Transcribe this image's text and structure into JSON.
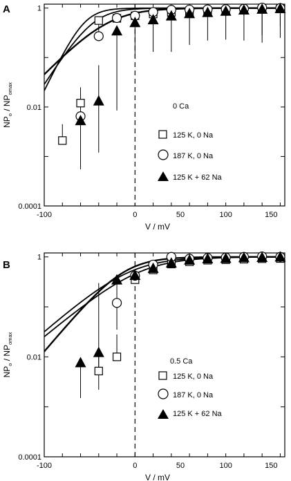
{
  "colors": {
    "ink": "#000000",
    "open_marker": "#ffffff"
  },
  "chart_data": [
    {
      "panel_label": "A",
      "type": "scatter",
      "log_y": true,
      "xlim": [
        -100,
        165
      ],
      "ylim": [
        0.0001,
        1.2
      ],
      "x_ticks": [
        -100,
        -80,
        -60,
        -40,
        -20,
        0,
        20,
        40,
        60,
        80,
        100,
        120,
        140,
        160
      ],
      "x_tick_labels": [
        "-100",
        "0",
        "50",
        "100",
        "150"
      ],
      "x_tick_label_values": [
        -100,
        0,
        50,
        100,
        150
      ],
      "y_ticks": [
        0.0001,
        0.01,
        1
      ],
      "y_tick_labels": [
        "0.0001",
        "0.01",
        "1"
      ],
      "xlabel": "V / mV",
      "ylabel": {
        "main1": "NP",
        "sub1": "o",
        "main2": " / NP",
        "sub2": "omax"
      },
      "legend_title": "0 Ca",
      "vertical_dashed_line_at_x": 0,
      "series": [
        {
          "name": "125 K, 0 Na",
          "marker": "square",
          "points": [
            {
              "x": -80,
              "y": 0.0021,
              "err_up": 0.0045
            },
            {
              "x": -60,
              "y": 0.012,
              "err_up": 0.025
            },
            {
              "x": -40,
              "y": 0.56
            },
            {
              "x": -20,
              "y": 0.62
            },
            {
              "x": 0,
              "y": 0.7
            },
            {
              "x": 20,
              "y": 0.76
            },
            {
              "x": 40,
              "y": 0.82
            },
            {
              "x": 60,
              "y": 0.85
            },
            {
              "x": 80,
              "y": 0.88
            },
            {
              "x": 100,
              "y": 0.9
            },
            {
              "x": 120,
              "y": 0.92
            },
            {
              "x": 140,
              "y": 0.95
            },
            {
              "x": 160,
              "y": 0.96
            }
          ],
          "curve": {
            "vhalf": -56,
            "slope": 2.2
          }
        },
        {
          "name": "187 K, 0 Na",
          "marker": "circle",
          "points": [
            {
              "x": -60,
              "y": 0.0065,
              "err_up": 0.018
            },
            {
              "x": -40,
              "y": 0.27,
              "err_up": 0.62
            },
            {
              "x": -20,
              "y": 0.63
            },
            {
              "x": 0,
              "y": 0.7
            },
            {
              "x": 20,
              "y": 0.83
            },
            {
              "x": 40,
              "y": 0.92,
              "err_down": 0.62
            },
            {
              "x": 60,
              "y": 0.93,
              "err_down": 0.67
            },
            {
              "x": 80,
              "y": 0.94
            },
            {
              "x": 100,
              "y": 0.95,
              "err_down": 0.68
            },
            {
              "x": 120,
              "y": 0.97,
              "err_down": 0.7
            },
            {
              "x": 140,
              "y": 1.02,
              "err_down": 0.28
            },
            {
              "x": 160,
              "y": 1.0,
              "err_down": 0.42
            }
          ],
          "curve": {
            "vhalf": -46,
            "slope": 1.65
          }
        },
        {
          "name": "125 K + 62 Na",
          "marker": "triangle",
          "points": [
            {
              "x": -60,
              "y": 0.0052,
              "err_down": 0.00055
            },
            {
              "x": -40,
              "y": 0.013,
              "err_down": 0.0012,
              "err_up": 0.07
            },
            {
              "x": -20,
              "y": 0.34,
              "err_down": 0.0085
            },
            {
              "x": 0,
              "y": 0.5,
              "err_down": 0.1
            },
            {
              "x": 20,
              "y": 0.57,
              "err_down": 0.13
            },
            {
              "x": 40,
              "y": 0.68,
              "err_down": 0.13
            },
            {
              "x": 60,
              "y": 0.76,
              "err_down": 0.18
            },
            {
              "x": 80,
              "y": 0.8,
              "err_down": 0.22
            },
            {
              "x": 100,
              "y": 0.85,
              "err_down": 0.23
            },
            {
              "x": 120,
              "y": 0.9,
              "err_down": 0.22
            },
            {
              "x": 140,
              "y": 0.93,
              "err_down": 0.2
            },
            {
              "x": 160,
              "y": 0.96,
              "err_down": 0.25
            }
          ],
          "curve": {
            "vhalf": -30,
            "slope": 1.1
          }
        }
      ]
    },
    {
      "panel_label": "B",
      "type": "scatter",
      "log_y": true,
      "xlim": [
        -100,
        165
      ],
      "ylim": [
        0.0001,
        1.2
      ],
      "x_ticks": [
        -100,
        -80,
        -60,
        -40,
        -20,
        0,
        20,
        40,
        60,
        80,
        100,
        120,
        140,
        160
      ],
      "x_tick_labels": [
        "-100",
        "0",
        "50",
        "100",
        "150"
      ],
      "x_tick_label_values": [
        -100,
        0,
        50,
        100,
        150
      ],
      "y_ticks": [
        0.0001,
        0.01,
        1
      ],
      "y_tick_labels": [
        "0.0001",
        "0.01",
        "1"
      ],
      "xlabel": "V / mV",
      "ylabel": {
        "main1": "NP",
        "sub1": "o",
        "main2": " / NP",
        "sub2": "omax"
      },
      "legend_title": "0.5 Ca",
      "vertical_dashed_line_at_x": 0,
      "series": [
        {
          "name": "125 K, 0 Na",
          "marker": "square",
          "points": [
            {
              "x": -40,
              "y": 0.0052,
              "err_up": 0.012
            },
            {
              "x": -20,
              "y": 0.01,
              "err_up": 0.028
            },
            {
              "x": 0,
              "y": 0.35
            },
            {
              "x": 20,
              "y": 0.55
            },
            {
              "x": 40,
              "y": 0.72
            },
            {
              "x": 60,
              "y": 0.8
            },
            {
              "x": 80,
              "y": 0.86
            },
            {
              "x": 100,
              "y": 0.88
            },
            {
              "x": 120,
              "y": 0.9
            },
            {
              "x": 140,
              "y": 0.92
            },
            {
              "x": 160,
              "y": 0.93
            }
          ],
          "curve": {
            "vhalf": 5,
            "slope": 0.88
          }
        },
        {
          "name": "187 K, 0 Na",
          "marker": "circle",
          "points": [
            {
              "x": -20,
              "y": 0.12
            },
            {
              "x": 0,
              "y": 0.42
            },
            {
              "x": 20,
              "y": 0.7
            },
            {
              "x": 40,
              "y": 1.0
            },
            {
              "x": 60,
              "y": 0.92
            },
            {
              "x": 80,
              "y": 0.95
            },
            {
              "x": 100,
              "y": 0.97
            },
            {
              "x": 120,
              "y": 1.0
            },
            {
              "x": 140,
              "y": 1.02
            },
            {
              "x": 160,
              "y": 1.0
            }
          ],
          "curve": {
            "vhalf": -6,
            "slope": 0.92
          }
        },
        {
          "name": "125 K + 62 Na",
          "marker": "triangle",
          "points": [
            {
              "x": -60,
              "y": 0.0075,
              "err_down": 0.0015
            },
            {
              "x": -40,
              "y": 0.012,
              "err_down": 0.0022,
              "err_up": 0.3
            },
            {
              "x": -20,
              "y": 0.34,
              "err_down": 0.035
            },
            {
              "x": 0,
              "y": 0.42
            },
            {
              "x": 20,
              "y": 0.58
            },
            {
              "x": 40,
              "y": 0.74
            },
            {
              "x": 60,
              "y": 0.85
            },
            {
              "x": 80,
              "y": 0.9
            },
            {
              "x": 100,
              "y": 0.92
            },
            {
              "x": 120,
              "y": 0.95
            },
            {
              "x": 140,
              "y": 0.96
            },
            {
              "x": 160,
              "y": 0.98
            }
          ],
          "curve": {
            "vhalf": -12,
            "slope": 1.25
          }
        }
      ]
    }
  ]
}
